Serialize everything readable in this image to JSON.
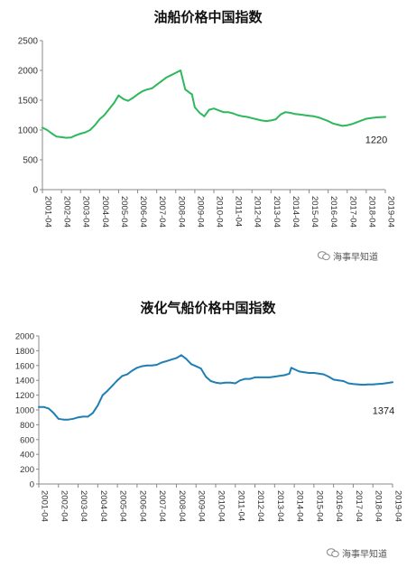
{
  "watermark": "海事早知道",
  "chart_data": [
    {
      "type": "line",
      "title": "油船价格中国指数",
      "line_color": "#2eb85c",
      "ylim": [
        0,
        2500
      ],
      "yticks": [
        0,
        500,
        1000,
        1500,
        2000,
        2500
      ],
      "xticks": [
        "2001-04",
        "2002-04",
        "2003-04",
        "2004-04",
        "2005-04",
        "2006-04",
        "2007-04",
        "2008-04",
        "2009-04",
        "2010-04",
        "2011-04",
        "2012-04",
        "2013-04",
        "2014-04",
        "2015-04",
        "2016-04",
        "2017-04",
        "2018-04",
        "2019-04"
      ],
      "end_label": "1220",
      "grid": false,
      "series": [
        {
          "x": [
            2001.25,
            2001.5,
            2001.75,
            2002.0,
            2002.25,
            2002.5,
            2002.75,
            2003.0,
            2003.25,
            2003.5,
            2003.75,
            2004.0,
            2004.25,
            2004.5,
            2004.75,
            2005.0,
            2005.25,
            2005.5,
            2005.75,
            2006.0,
            2006.25,
            2006.5,
            2006.75,
            2007.0,
            2007.25,
            2007.5,
            2007.75,
            2008.0,
            2008.25,
            2008.5,
            2008.75,
            2009.0,
            2009.1,
            2009.25,
            2009.5,
            2009.75,
            2010.0,
            2010.25,
            2010.5,
            2010.75,
            2011.0,
            2011.25,
            2011.5,
            2011.75,
            2012.0,
            2012.25,
            2012.5,
            2012.75,
            2013.0,
            2013.25,
            2013.5,
            2013.75,
            2014.0,
            2014.25,
            2014.5,
            2014.75,
            2015.0,
            2015.25,
            2015.5,
            2015.75,
            2016.0,
            2016.25,
            2016.5,
            2016.75,
            2017.0,
            2017.25,
            2017.5,
            2017.75,
            2018.0,
            2018.25,
            2018.5,
            2018.75,
            2019.0,
            2019.25
          ],
          "values": [
            1040,
            1000,
            940,
            890,
            880,
            870,
            875,
            910,
            940,
            960,
            1000,
            1080,
            1180,
            1250,
            1350,
            1450,
            1580,
            1520,
            1490,
            1540,
            1600,
            1650,
            1680,
            1700,
            1760,
            1820,
            1880,
            1920,
            1960,
            2000,
            1680,
            1620,
            1600,
            1380,
            1290,
            1230,
            1340,
            1360,
            1330,
            1300,
            1300,
            1280,
            1250,
            1230,
            1220,
            1200,
            1180,
            1160,
            1150,
            1160,
            1180,
            1260,
            1300,
            1290,
            1270,
            1260,
            1250,
            1240,
            1230,
            1210,
            1180,
            1150,
            1110,
            1090,
            1070,
            1080,
            1100,
            1130,
            1160,
            1190,
            1200,
            1210,
            1215,
            1220
          ]
        }
      ]
    },
    {
      "type": "line",
      "title": "液化气船价格中国指数",
      "line_color": "#1f7fb4",
      "ylim": [
        0,
        2000
      ],
      "yticks": [
        0,
        200,
        400,
        600,
        800,
        1000,
        1200,
        1400,
        1600,
        1800,
        2000
      ],
      "xticks": [
        "2001-04",
        "2002-04",
        "2003-04",
        "2004-04",
        "2005-04",
        "2006-04",
        "2007-04",
        "2008-04",
        "2009-04",
        "2010-04",
        "2011-04",
        "2012-04",
        "2013-04",
        "2014-04",
        "2015-04",
        "2016-04",
        "2017-04",
        "2018-04",
        "2019-04"
      ],
      "end_label": "1374",
      "grid": false,
      "series": [
        {
          "x": [
            2001.25,
            2001.5,
            2001.75,
            2002.0,
            2002.25,
            2002.5,
            2002.75,
            2003.0,
            2003.25,
            2003.5,
            2003.75,
            2004.0,
            2004.25,
            2004.5,
            2004.75,
            2005.0,
            2005.25,
            2005.5,
            2005.75,
            2006.0,
            2006.25,
            2006.5,
            2006.75,
            2007.0,
            2007.25,
            2007.5,
            2007.75,
            2008.0,
            2008.25,
            2008.5,
            2008.75,
            2009.0,
            2009.25,
            2009.5,
            2009.75,
            2010.0,
            2010.25,
            2010.5,
            2010.75,
            2011.0,
            2011.25,
            2011.5,
            2011.75,
            2012.0,
            2012.25,
            2012.5,
            2012.75,
            2013.0,
            2013.25,
            2013.5,
            2013.75,
            2014.0,
            2014.1,
            2014.25,
            2014.5,
            2014.75,
            2015.0,
            2015.25,
            2015.5,
            2015.75,
            2016.0,
            2016.25,
            2016.5,
            2016.75,
            2017.0,
            2017.25,
            2017.5,
            2017.75,
            2018.0,
            2018.25,
            2018.5,
            2018.75,
            2019.0,
            2019.25
          ],
          "values": [
            1040,
            1040,
            1020,
            960,
            880,
            870,
            870,
            880,
            900,
            910,
            910,
            960,
            1060,
            1200,
            1260,
            1330,
            1400,
            1460,
            1480,
            1530,
            1570,
            1590,
            1600,
            1600,
            1610,
            1640,
            1660,
            1680,
            1700,
            1740,
            1690,
            1620,
            1590,
            1560,
            1450,
            1390,
            1370,
            1360,
            1370,
            1370,
            1360,
            1400,
            1420,
            1420,
            1440,
            1440,
            1440,
            1440,
            1450,
            1460,
            1470,
            1490,
            1570,
            1550,
            1520,
            1510,
            1500,
            1500,
            1490,
            1480,
            1450,
            1410,
            1400,
            1390,
            1360,
            1350,
            1345,
            1340,
            1345,
            1345,
            1350,
            1355,
            1365,
            1374
          ]
        }
      ]
    }
  ]
}
